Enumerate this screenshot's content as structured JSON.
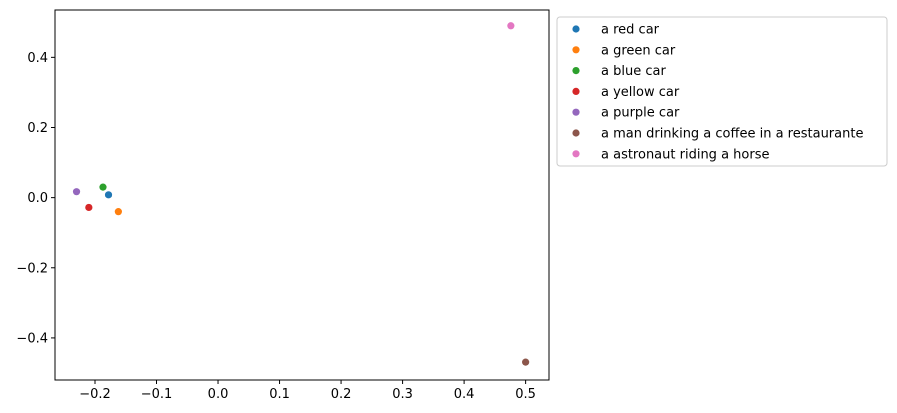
{
  "chart_data": {
    "type": "scatter",
    "title": "",
    "xlabel": "",
    "ylabel": "",
    "xlim": [
      -0.265,
      0.538
    ],
    "ylim": [
      -0.52,
      0.535
    ],
    "x_ticks": [
      -0.2,
      -0.1,
      0.0,
      0.1,
      0.2,
      0.3,
      0.4,
      0.5
    ],
    "x_tick_labels": [
      "−0.2",
      "−0.1",
      "0.0",
      "0.1",
      "0.2",
      "0.3",
      "0.4",
      "0.5"
    ],
    "y_ticks": [
      -0.4,
      -0.2,
      0.0,
      0.2,
      0.4
    ],
    "y_tick_labels": [
      "−0.4",
      "−0.2",
      "0.0",
      "0.2",
      "0.4"
    ],
    "grid": false,
    "legend_position": "outside right, top",
    "series": [
      {
        "name": "a red car",
        "color": "#1f77b4",
        "points": [
          {
            "x": -0.178,
            "y": 0.008
          }
        ]
      },
      {
        "name": "a green car",
        "color": "#ff7f0e",
        "points": [
          {
            "x": -0.162,
            "y": -0.04
          }
        ]
      },
      {
        "name": "a blue car",
        "color": "#2ca02c",
        "points": [
          {
            "x": -0.187,
            "y": 0.03
          }
        ]
      },
      {
        "name": "a yellow car",
        "color": "#d62728",
        "points": [
          {
            "x": -0.21,
            "y": -0.028
          }
        ]
      },
      {
        "name": "a purple car",
        "color": "#9467bd",
        "points": [
          {
            "x": -0.23,
            "y": 0.017
          }
        ]
      },
      {
        "name": "a man drinking a coffee in a restaurante",
        "color": "#8c564b",
        "points": [
          {
            "x": 0.5,
            "y": -0.469
          }
        ]
      },
      {
        "name": "a astronaut riding a horse",
        "color": "#e377c2",
        "points": [
          {
            "x": 0.476,
            "y": 0.49
          }
        ]
      }
    ]
  }
}
